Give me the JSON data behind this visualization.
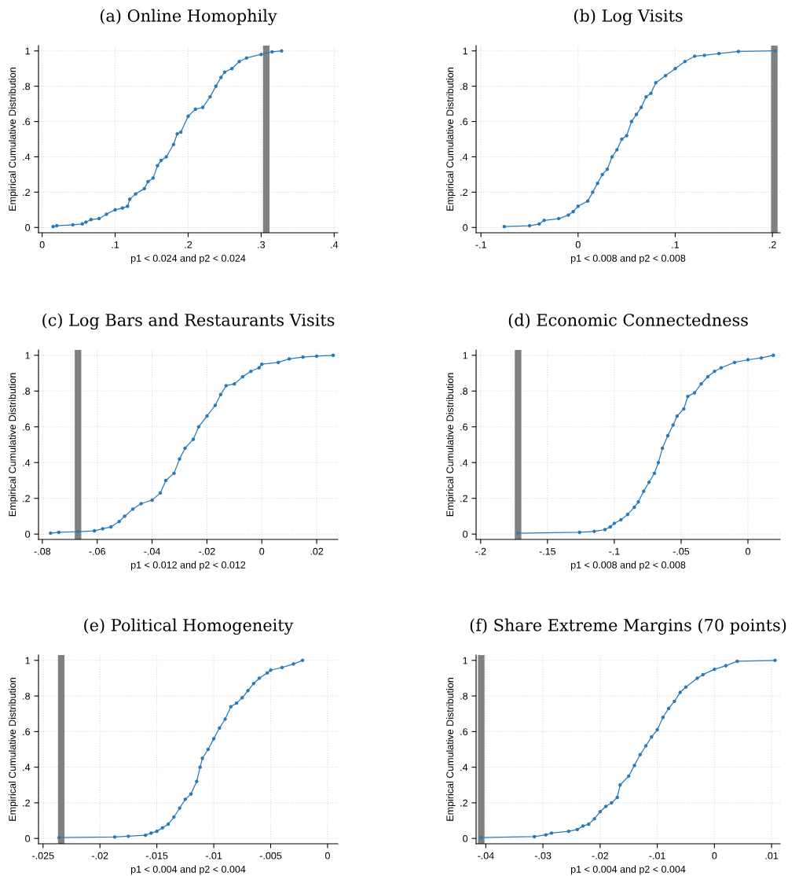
{
  "chart_data": [
    {
      "type": "line",
      "title": "(a) Online Homophily",
      "xlabel": "p1 < 0.024 and p2 < 0.024",
      "ylabel": "Empirical Cumulative Distribution",
      "marker": "circle",
      "grid": true,
      "xlim": [
        -0.005,
        0.405
      ],
      "ylim": [
        -0.03,
        1.03
      ],
      "xticks": [
        0,
        {
          "value": 0.1,
          "label": ".1"
        },
        {
          "value": 0.2,
          "label": ".2"
        },
        {
          "value": 0.3,
          "label": ".3"
        },
        {
          "value": 0.4,
          "label": ".4"
        }
      ],
      "yticks": [
        0,
        {
          "value": 0.2,
          "label": ".2"
        },
        {
          "value": 0.4,
          "label": ".4"
        },
        {
          "value": 0.6,
          "label": ".6"
        },
        {
          "value": 0.8,
          "label": ".8"
        },
        1
      ],
      "ref_lines": [
        {
          "axis": "x",
          "value": 0.307,
          "color": "#808080"
        }
      ],
      "series": [
        {
          "color": "#2a7ab9",
          "x": [
            0.015,
            0.02,
            0.042,
            0.055,
            0.06,
            0.067,
            0.078,
            0.088,
            0.1,
            0.11,
            0.117,
            0.12,
            0.128,
            0.14,
            0.145,
            0.152,
            0.158,
            0.163,
            0.17,
            0.18,
            0.185,
            0.19,
            0.2,
            0.21,
            0.22,
            0.23,
            0.238,
            0.245,
            0.25,
            0.26,
            0.27,
            0.28,
            0.3,
            0.315,
            0.328
          ],
          "values": [
            0.005,
            0.01,
            0.015,
            0.02,
            0.03,
            0.045,
            0.05,
            0.075,
            0.1,
            0.11,
            0.12,
            0.16,
            0.19,
            0.22,
            0.26,
            0.28,
            0.35,
            0.38,
            0.4,
            0.47,
            0.53,
            0.54,
            0.63,
            0.67,
            0.68,
            0.74,
            0.8,
            0.85,
            0.88,
            0.9,
            0.94,
            0.96,
            0.98,
            0.995,
            1.0
          ]
        }
      ]
    },
    {
      "type": "line",
      "title": "(b) Log Visits",
      "xlabel": "p1 < 0.008 and p2 < 0.008",
      "ylabel": "Empirical Cumulative Distribution",
      "marker": "circle",
      "grid": true,
      "xlim": [
        -0.105,
        0.208
      ],
      "ylim": [
        -0.03,
        1.03
      ],
      "xticks": [
        {
          "value": -0.1,
          "label": "-.1"
        },
        0,
        {
          "value": 0.1,
          "label": ".1"
        },
        {
          "value": 0.2,
          "label": ".2"
        }
      ],
      "yticks": [
        0,
        {
          "value": 0.2,
          "label": ".2"
        },
        {
          "value": 0.4,
          "label": ".4"
        },
        {
          "value": 0.6,
          "label": ".6"
        },
        {
          "value": 0.8,
          "label": ".8"
        },
        1
      ],
      "ref_lines": [
        {
          "axis": "x",
          "value": 0.202,
          "color": "#808080"
        }
      ],
      "series": [
        {
          "color": "#2a7ab9",
          "x": [
            -0.076,
            -0.05,
            -0.04,
            -0.035,
            -0.02,
            -0.01,
            -0.005,
            0.0,
            0.01,
            0.015,
            0.02,
            0.025,
            0.03,
            0.035,
            0.04,
            0.045,
            0.05,
            0.055,
            0.06,
            0.065,
            0.07,
            0.075,
            0.08,
            0.09,
            0.1,
            0.11,
            0.12,
            0.13,
            0.145,
            0.165,
            0.203
          ],
          "values": [
            0.005,
            0.01,
            0.02,
            0.04,
            0.05,
            0.07,
            0.09,
            0.12,
            0.15,
            0.2,
            0.25,
            0.3,
            0.33,
            0.4,
            0.44,
            0.5,
            0.52,
            0.6,
            0.64,
            0.68,
            0.74,
            0.76,
            0.82,
            0.86,
            0.9,
            0.94,
            0.97,
            0.975,
            0.985,
            0.997,
            1.0
          ]
        }
      ]
    },
    {
      "type": "line",
      "title": "(c) Log Bars and Restaurants Visits",
      "xlabel": "p1 < 0.012 and p2 < 0.012",
      "ylabel": "Empirical Cumulative Distribution",
      "marker": "circle",
      "grid": true,
      "xlim": [
        -0.0814,
        0.0277
      ],
      "ylim": [
        -0.03,
        1.03
      ],
      "xticks": [
        {
          "value": -0.08,
          "label": "-.08"
        },
        {
          "value": -0.06,
          "label": "-.06"
        },
        {
          "value": -0.04,
          "label": "-.04"
        },
        {
          "value": -0.02,
          "label": "-.02"
        },
        0,
        {
          "value": 0.02,
          "label": ".02"
        }
      ],
      "yticks": [
        0,
        {
          "value": 0.2,
          "label": ".2"
        },
        {
          "value": 0.4,
          "label": ".4"
        },
        {
          "value": 0.6,
          "label": ".6"
        },
        {
          "value": 0.8,
          "label": ".8"
        },
        1
      ],
      "ref_lines": [
        {
          "axis": "x",
          "value": -0.067,
          "color": "#808080"
        }
      ],
      "series": [
        {
          "color": "#2a7ab9",
          "x": [
            -0.077,
            -0.074,
            -0.067,
            -0.061,
            -0.058,
            -0.055,
            -0.052,
            -0.05,
            -0.047,
            -0.044,
            -0.04,
            -0.037,
            -0.035,
            -0.032,
            -0.03,
            -0.028,
            -0.025,
            -0.023,
            -0.02,
            -0.017,
            -0.015,
            -0.013,
            -0.01,
            -0.007,
            -0.004,
            -0.001,
            0.0,
            0.006,
            0.01,
            0.015,
            0.02,
            0.026
          ],
          "values": [
            0.005,
            0.01,
            0.013,
            0.018,
            0.03,
            0.04,
            0.07,
            0.1,
            0.14,
            0.17,
            0.19,
            0.23,
            0.3,
            0.34,
            0.42,
            0.48,
            0.53,
            0.6,
            0.66,
            0.72,
            0.78,
            0.83,
            0.84,
            0.88,
            0.91,
            0.93,
            0.95,
            0.96,
            0.98,
            0.99,
            0.995,
            1.0
          ]
        }
      ]
    },
    {
      "type": "line",
      "title": "(d) Economic Connectedness",
      "xlabel": "p1 < 0.008 and p2 < 0.008",
      "ylabel": "Empirical Cumulative Distribution",
      "marker": "circle",
      "grid": true,
      "xlim": [
        -0.2034,
        0.0241
      ],
      "ylim": [
        -0.03,
        1.03
      ],
      "xticks": [
        {
          "value": -0.2,
          "label": "-.2"
        },
        {
          "value": -0.15,
          "label": "-.15"
        },
        {
          "value": -0.1,
          "label": "-.1"
        },
        {
          "value": -0.05,
          "label": "-.05"
        },
        0
      ],
      "yticks": [
        0,
        {
          "value": 0.2,
          "label": ".2"
        },
        {
          "value": 0.4,
          "label": ".4"
        },
        {
          "value": 0.6,
          "label": ".6"
        },
        {
          "value": 0.8,
          "label": ".8"
        },
        1
      ],
      "ref_lines": [
        {
          "axis": "x",
          "value": -0.172,
          "color": "#808080"
        }
      ],
      "series": [
        {
          "color": "#2a7ab9",
          "x": [
            -0.172,
            -0.126,
            -0.115,
            -0.107,
            -0.103,
            -0.1,
            -0.095,
            -0.09,
            -0.085,
            -0.082,
            -0.078,
            -0.074,
            -0.07,
            -0.067,
            -0.064,
            -0.06,
            -0.056,
            -0.053,
            -0.048,
            -0.045,
            -0.04,
            -0.035,
            -0.03,
            -0.025,
            -0.02,
            -0.01,
            0.0,
            0.01,
            0.019
          ],
          "values": [
            0.005,
            0.01,
            0.015,
            0.025,
            0.04,
            0.06,
            0.08,
            0.11,
            0.15,
            0.18,
            0.24,
            0.29,
            0.34,
            0.4,
            0.48,
            0.55,
            0.61,
            0.66,
            0.7,
            0.77,
            0.79,
            0.84,
            0.88,
            0.91,
            0.93,
            0.96,
            0.975,
            0.985,
            1.0
          ]
        }
      ]
    },
    {
      "type": "line",
      "title": "(e) Political Homogeneity",
      "xlabel": "p1 < 0.004 and p2 < 0.004",
      "ylabel": "Empirical Cumulative Distribution",
      "marker": "circle",
      "grid": true,
      "xlim": [
        -0.0254,
        0.0009
      ],
      "ylim": [
        -0.03,
        1.03
      ],
      "xticks": [
        {
          "value": -0.025,
          "label": "-.025"
        },
        {
          "value": -0.02,
          "label": "-.02"
        },
        {
          "value": -0.015,
          "label": "-.015"
        },
        {
          "value": -0.01,
          "label": "-.01"
        },
        {
          "value": -0.005,
          "label": "-.005"
        },
        0
      ],
      "yticks": [
        0,
        {
          "value": 0.2,
          "label": ".2"
        },
        {
          "value": 0.4,
          "label": ".4"
        },
        {
          "value": 0.6,
          "label": ".6"
        },
        {
          "value": 0.8,
          "label": ".8"
        },
        1
      ],
      "ref_lines": [
        {
          "axis": "x",
          "value": -0.0234,
          "color": "#808080"
        }
      ],
      "series": [
        {
          "color": "#2a7ab9",
          "x": [
            -0.0236,
            -0.0187,
            -0.0175,
            -0.016,
            -0.0155,
            -0.015,
            -0.0145,
            -0.014,
            -0.0135,
            -0.013,
            -0.0125,
            -0.012,
            -0.0115,
            -0.0112,
            -0.011,
            -0.0105,
            -0.01,
            -0.0095,
            -0.009,
            -0.0085,
            -0.008,
            -0.0075,
            -0.007,
            -0.0065,
            -0.006,
            -0.0053,
            -0.005,
            -0.004,
            -0.003,
            -0.0022
          ],
          "values": [
            0.005,
            0.008,
            0.012,
            0.018,
            0.03,
            0.04,
            0.06,
            0.08,
            0.12,
            0.17,
            0.22,
            0.25,
            0.32,
            0.4,
            0.45,
            0.5,
            0.56,
            0.62,
            0.67,
            0.74,
            0.76,
            0.79,
            0.83,
            0.87,
            0.9,
            0.93,
            0.945,
            0.96,
            0.98,
            1.0
          ]
        }
      ]
    },
    {
      "type": "line",
      "title": "(f) Share Extreme Margins (70 points)",
      "xlabel": "p1 < 0.004 and p2 < 0.004",
      "ylabel": "Empirical Cumulative Distribution",
      "marker": "circle",
      "grid": true,
      "xlim": [
        -0.0417,
        0.0115
      ],
      "ylim": [
        -0.03,
        1.03
      ],
      "xticks": [
        {
          "value": -0.04,
          "label": "-.04"
        },
        {
          "value": -0.03,
          "label": "-.03"
        },
        {
          "value": -0.02,
          "label": "-.02"
        },
        {
          "value": -0.01,
          "label": "-.01"
        },
        0,
        {
          "value": 0.01,
          "label": ".01"
        }
      ],
      "yticks": [
        0,
        {
          "value": 0.2,
          "label": ".2"
        },
        {
          "value": 0.4,
          "label": ".4"
        },
        {
          "value": 0.6,
          "label": ".6"
        },
        {
          "value": 0.8,
          "label": ".8"
        },
        1
      ],
      "ref_lines": [
        {
          "axis": "x",
          "value": -0.0408,
          "color": "#808080"
        }
      ],
      "series": [
        {
          "color": "#2a7ab9",
          "x": [
            -0.0408,
            -0.0315,
            -0.0295,
            -0.0285,
            -0.0255,
            -0.024,
            -0.023,
            -0.022,
            -0.021,
            -0.02,
            -0.019,
            -0.018,
            -0.017,
            -0.0165,
            -0.015,
            -0.014,
            -0.013,
            -0.012,
            -0.011,
            -0.01,
            -0.009,
            -0.008,
            -0.007,
            -0.006,
            -0.005,
            -0.003,
            -0.002,
            0.0,
            0.002,
            0.004,
            0.0106
          ],
          "values": [
            0.005,
            0.01,
            0.02,
            0.03,
            0.04,
            0.05,
            0.07,
            0.08,
            0.11,
            0.15,
            0.18,
            0.2,
            0.23,
            0.3,
            0.35,
            0.41,
            0.47,
            0.52,
            0.57,
            0.61,
            0.68,
            0.73,
            0.77,
            0.82,
            0.85,
            0.9,
            0.92,
            0.95,
            0.97,
            0.995,
            1.0
          ]
        }
      ]
    }
  ]
}
